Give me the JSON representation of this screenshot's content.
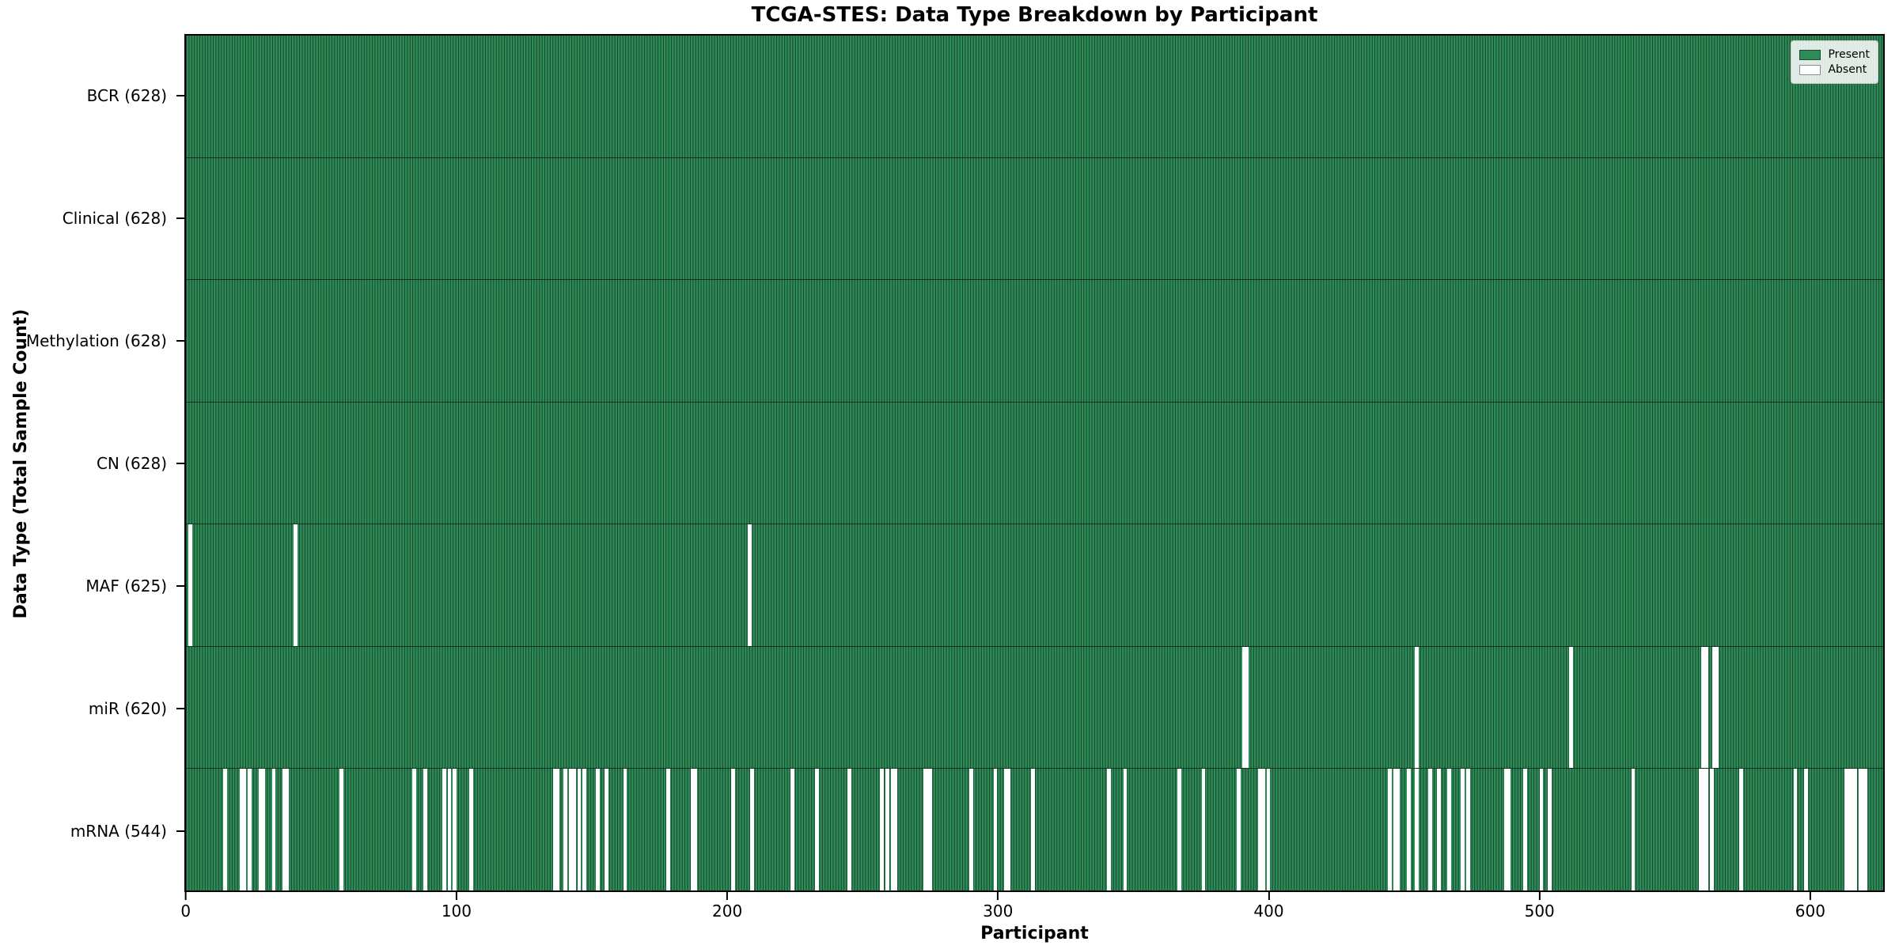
{
  "chart_data": {
    "type": "heatmap",
    "title": "TCGA-STES: Data Type Breakdown by Participant",
    "xlabel": "Participant",
    "ylabel": "Data Type (Total Sample Count)",
    "n_participants": 628,
    "x_ticks": [
      0,
      100,
      200,
      300,
      400,
      500,
      600
    ],
    "legend": [
      {
        "label": "Present",
        "color": "#2E8B57"
      },
      {
        "label": "Absent",
        "color": "#FFFFFF"
      }
    ],
    "legend_position": "upper right",
    "grid": false,
    "colors": {
      "present": "#2E8B57",
      "absent": "#FFFFFF",
      "bar_edge": "rgba(0,0,0,0.5)",
      "row_divider": "rgba(0,0,0,0.6)",
      "frame": "#000000",
      "legend_bg": "rgba(255,255,255,0.85)",
      "legend_border": "#cccccc"
    },
    "rows": [
      {
        "key": "BCR",
        "label": "BCR (628)",
        "present_count": 628,
        "absent_participants": []
      },
      {
        "key": "Clinical",
        "label": "Clinical (628)",
        "present_count": 628,
        "absent_participants": []
      },
      {
        "key": "Methylation",
        "label": "Methylation (628)",
        "present_count": 628,
        "absent_participants": []
      },
      {
        "key": "CN",
        "label": "CN (628)",
        "present_count": 628,
        "absent_participants": []
      },
      {
        "key": "MAF",
        "label": "MAF (625)",
        "present_count": 625,
        "absent_participants": [
          1,
          40,
          208
        ]
      },
      {
        "key": "miR",
        "label": "miR (620)",
        "present_count": 620,
        "absent_participants": [
          391,
          392,
          455,
          512,
          561,
          562,
          565,
          566
        ]
      },
      {
        "key": "mRNA",
        "label": "mRNA (544)",
        "present_count": 544,
        "absent_participants": [
          14,
          20,
          21,
          23,
          27,
          28,
          32,
          36,
          37,
          57,
          84,
          88,
          95,
          97,
          99,
          105,
          136,
          137,
          140,
          142,
          143,
          145,
          147,
          152,
          155,
          162,
          178,
          187,
          188,
          202,
          209,
          224,
          233,
          245,
          257,
          259,
          261,
          262,
          273,
          274,
          275,
          290,
          299,
          303,
          304,
          313,
          341,
          347,
          367,
          376,
          389,
          397,
          398,
          400,
          445,
          447,
          448,
          452,
          455,
          460,
          463,
          467,
          472,
          474,
          488,
          489,
          495,
          501,
          504,
          535,
          560,
          561,
          562,
          564,
          575,
          595,
          599,
          614,
          615,
          616,
          617,
          619,
          620,
          621
        ]
      }
    ]
  }
}
